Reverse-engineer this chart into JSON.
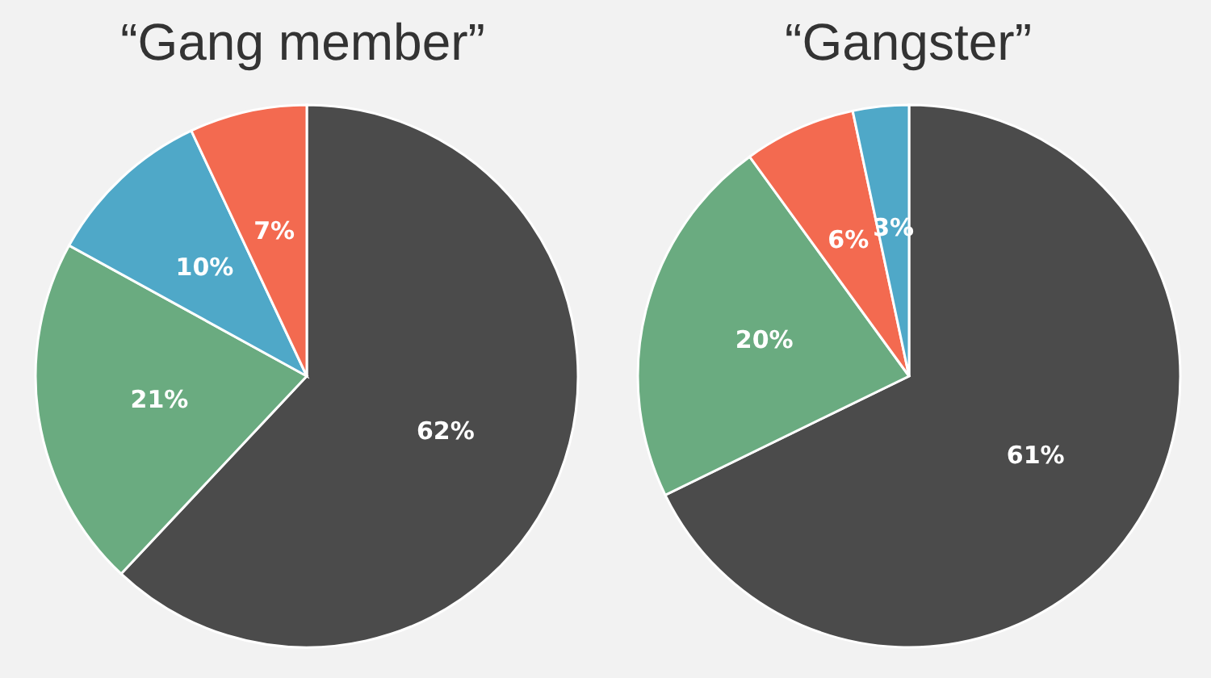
{
  "chart_data": [
    {
      "type": "pie",
      "title": "“Gang member”",
      "categories": [
        null,
        null,
        null,
        null
      ],
      "values": [
        62,
        21,
        10,
        7
      ],
      "colors": [
        "#4b4b4b",
        "#6aab80",
        "#4fa8c8",
        "#f36a50"
      ],
      "value_labels": [
        "62%",
        "21%",
        "10%",
        "7%"
      ]
    },
    {
      "type": "pie",
      "title": "“Gangster”",
      "categories": [
        null,
        null,
        null,
        null
      ],
      "values": [
        61,
        20,
        6,
        3
      ],
      "colors": [
        "#4b4b4b",
        "#6aab80",
        "#f36a50",
        "#4fa8c8"
      ],
      "value_labels": [
        "61%",
        "20%",
        "6%",
        "3%"
      ]
    }
  ]
}
